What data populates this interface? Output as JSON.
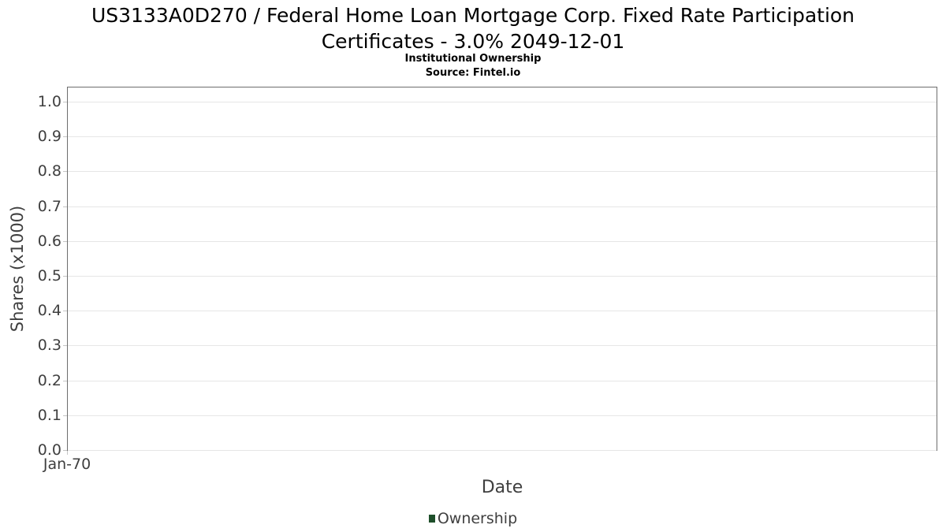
{
  "header": {
    "title_lines": [
      "US3133A0D270 / Federal Home Loan Mortgage Corp. Fixed Rate Participation",
      "Certificates - 3.0% 2049-12-01"
    ],
    "subtitle": "Institutional Ownership",
    "source": "Source: Fintel.io"
  },
  "chart_data": {
    "type": "line",
    "title": "US3133A0D270 / Federal Home Loan Mortgage Corp. Fixed Rate Participation Certificates - 3.0% 2049-12-01",
    "subtitle": "Institutional Ownership",
    "source": "Source: Fintel.io",
    "xlabel": "Date",
    "ylabel": "Shares (x1000)",
    "x_ticks": [
      "Jan-70"
    ],
    "y_ticks": [
      0.0,
      0.1,
      0.2,
      0.3,
      0.4,
      0.5,
      0.6,
      0.7,
      0.8,
      0.9,
      1.0
    ],
    "ylim": [
      0,
      1.045
    ],
    "grid": "horizontal",
    "legend_position": "bottom-center",
    "series": [
      {
        "name": "Ownership",
        "color": "#1e4f2a",
        "x": [],
        "values": []
      }
    ],
    "colors": {
      "axis_text": "#3f3f3f",
      "plot_border": "#6d6d6d",
      "gridline": "#e6e6e6",
      "legend_marker": "#1e4f2a"
    }
  }
}
